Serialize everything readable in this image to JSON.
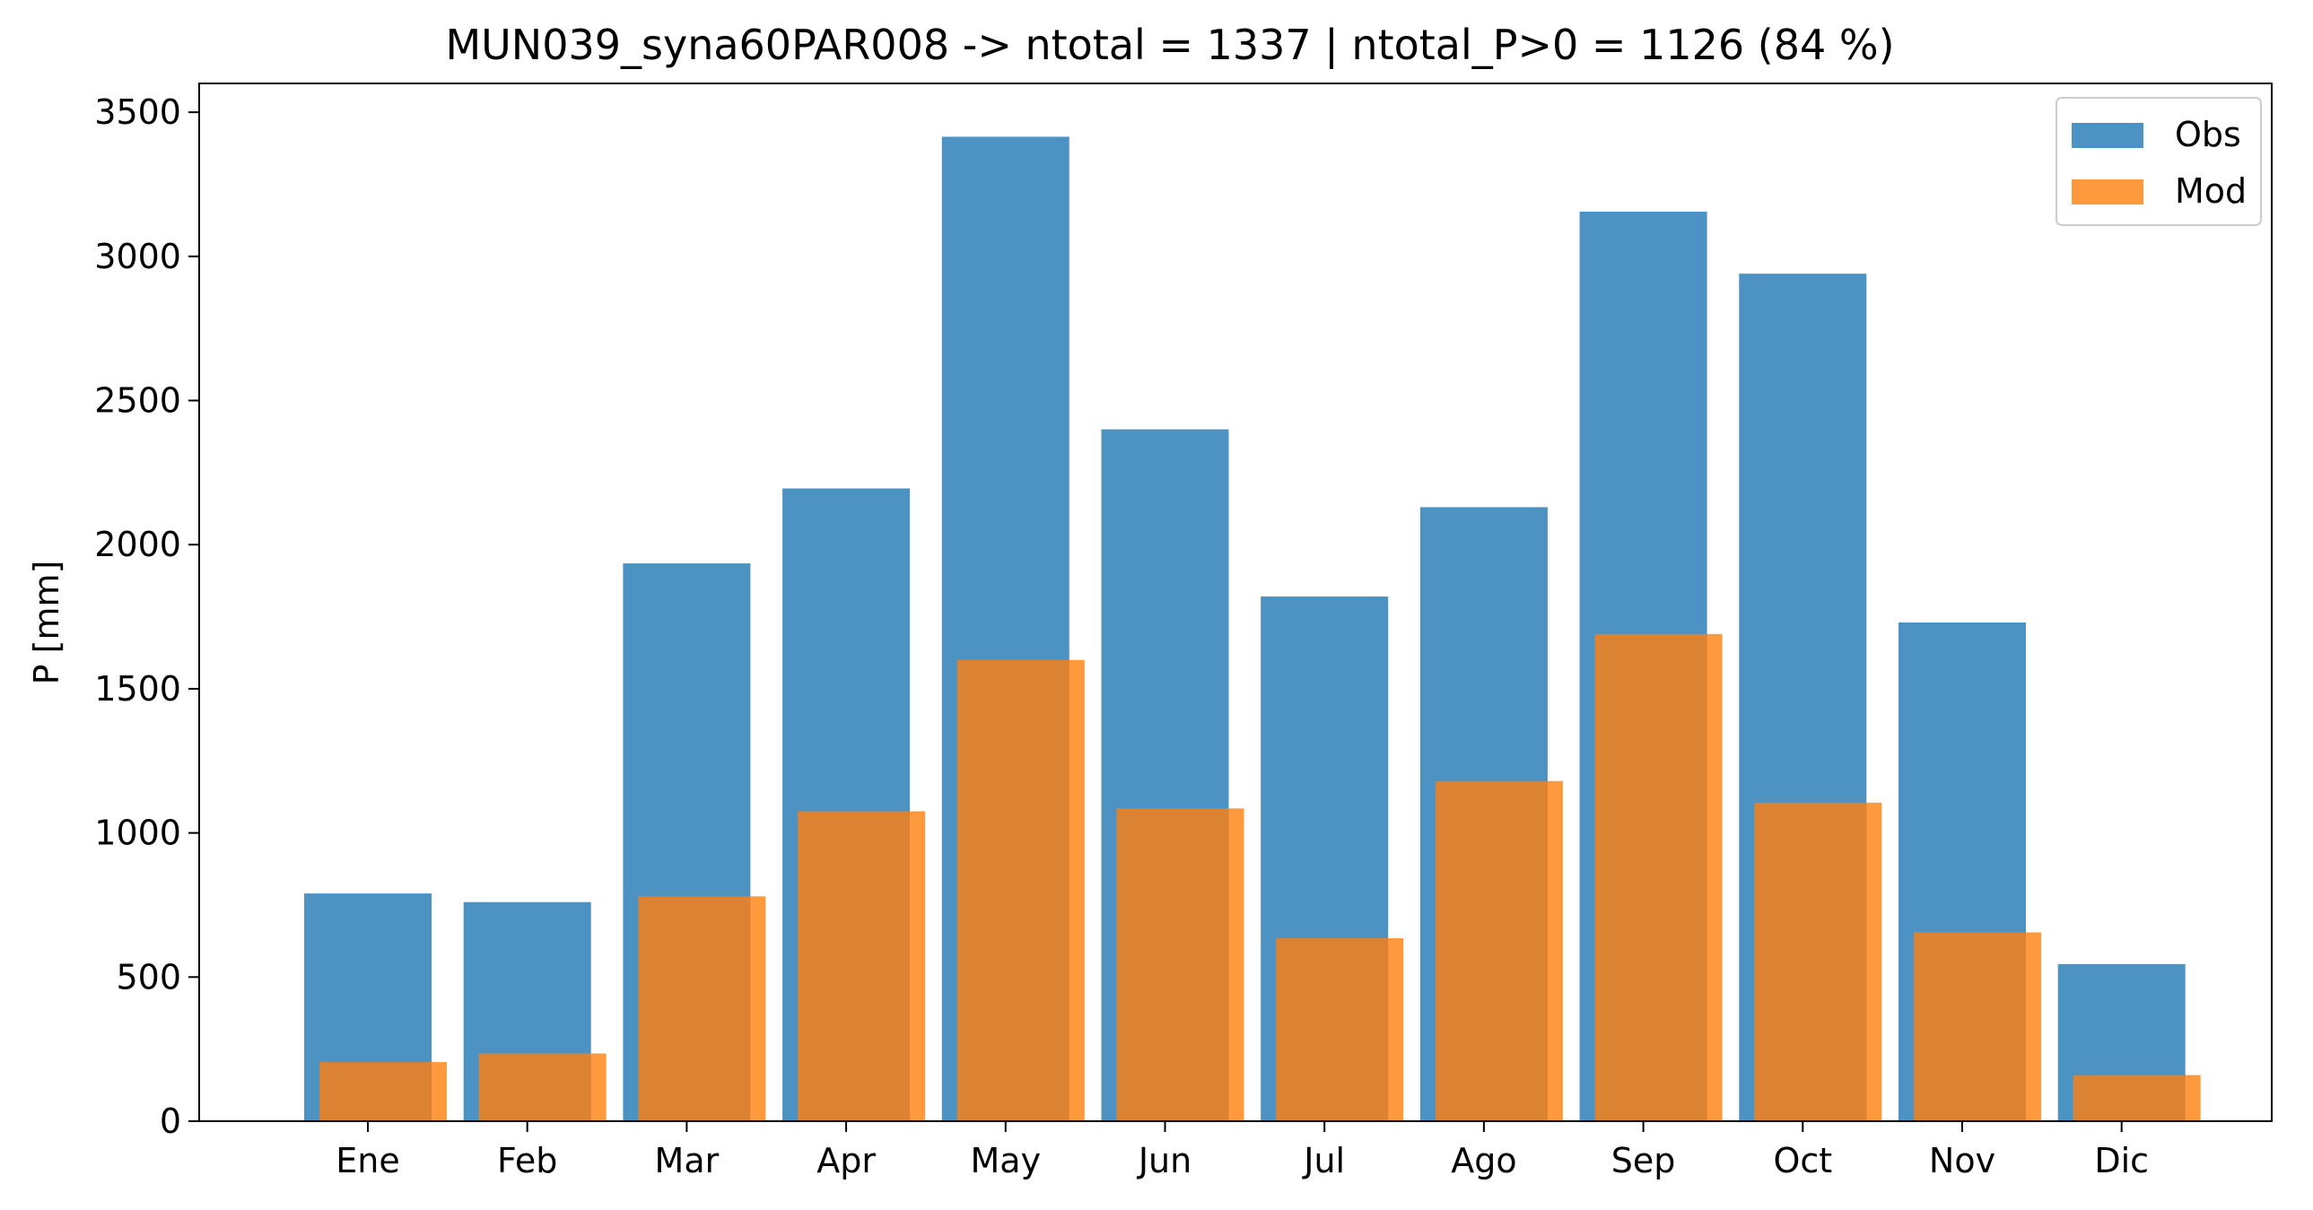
{
  "chart_data": {
    "type": "bar",
    "title": "MUN039_syna60PAR008 -> ntotal = 1337 | ntotal_P>0 = 1126 (84 %)",
    "xlabel": "",
    "ylabel": "P [mm]",
    "ylim": [
      0,
      3600
    ],
    "yticks": [
      0,
      500,
      1000,
      1500,
      2000,
      2500,
      3000,
      3500
    ],
    "categories": [
      "Ene",
      "Feb",
      "Mar",
      "Apr",
      "May",
      "Jun",
      "Jul",
      "Ago",
      "Sep",
      "Oct",
      "Nov",
      "Dic"
    ],
    "series": [
      {
        "name": "Obs",
        "color": "#1f77b4",
        "values": [
          790,
          760,
          1935,
          2195,
          3415,
          2400,
          1820,
          2130,
          3155,
          2940,
          1730,
          545
        ]
      },
      {
        "name": "Mod",
        "color": "#ff7f0e",
        "values": [
          205,
          235,
          780,
          1075,
          1600,
          1085,
          635,
          1180,
          1690,
          1105,
          655,
          160
        ]
      }
    ],
    "legend_position": "top-right",
    "grid": false
  }
}
